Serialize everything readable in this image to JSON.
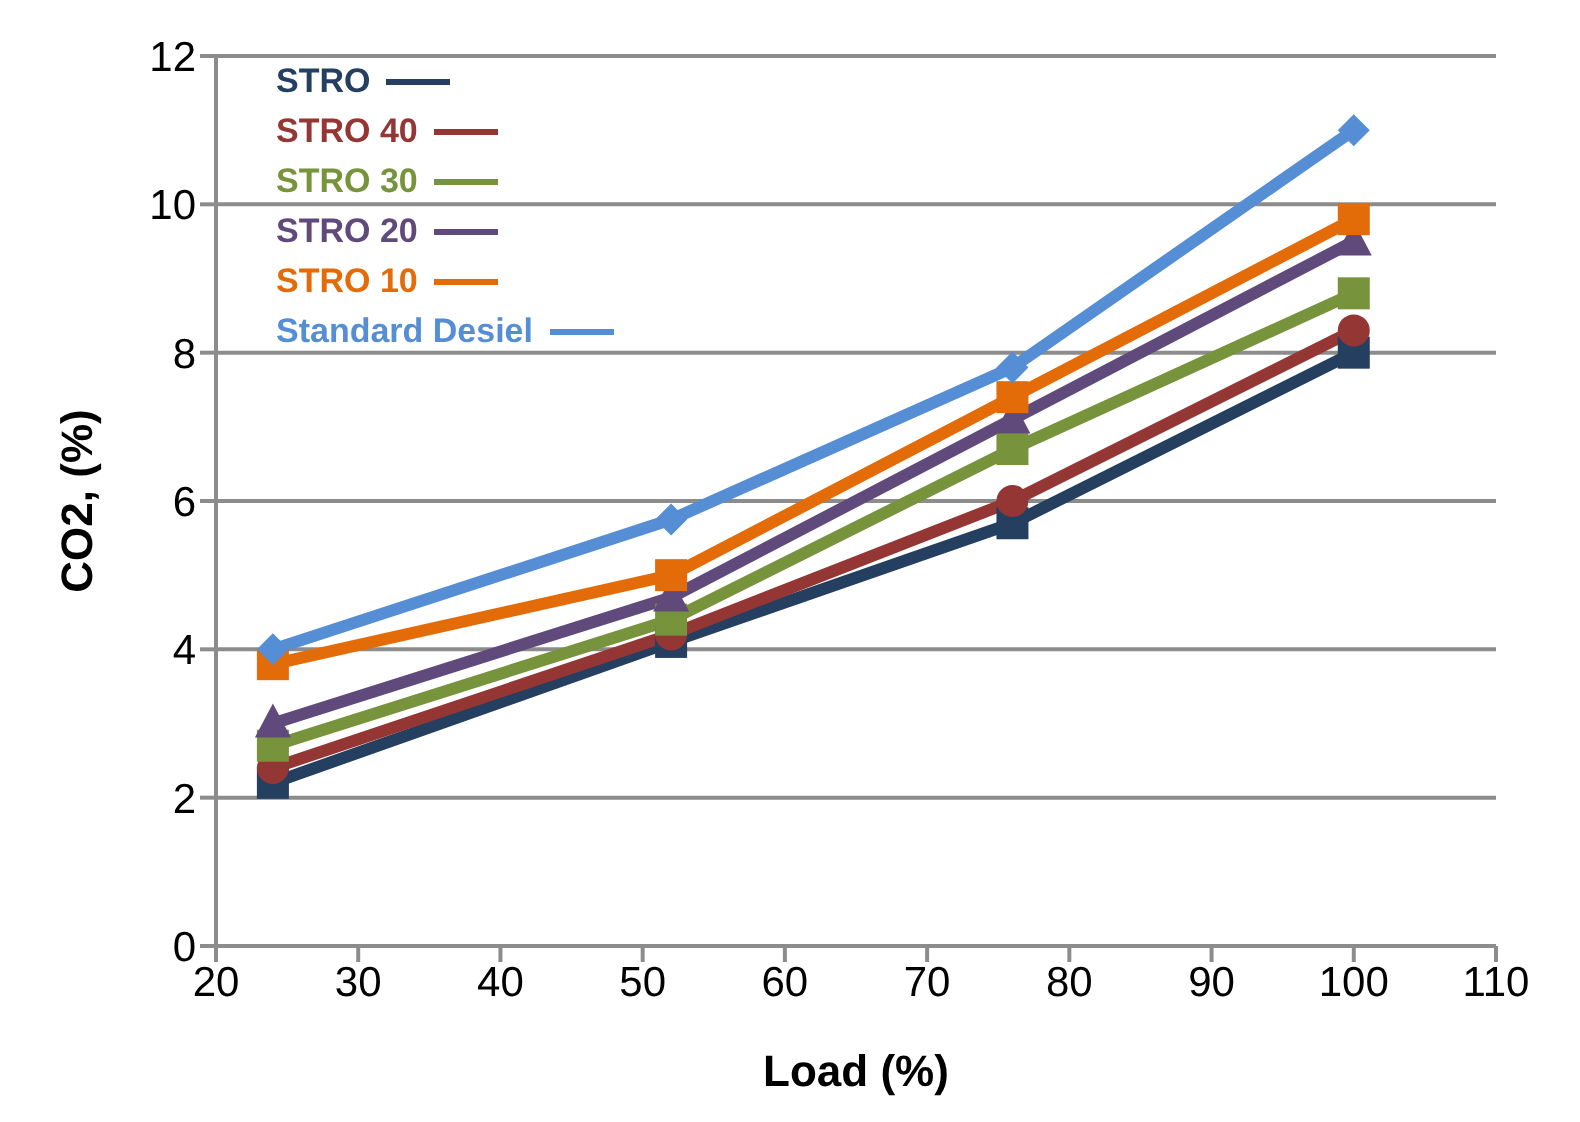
{
  "chart_data": {
    "type": "line",
    "xlabel": "Load (%)",
    "ylabel": "CO2, (%)",
    "x": [
      24,
      52,
      76,
      100
    ],
    "series": [
      {
        "name": "STRO",
        "color": "#243f60",
        "marker": "square",
        "values": [
          2.2,
          4.1,
          5.7,
          8.0
        ]
      },
      {
        "name": "STRO 40",
        "color": "#943634",
        "marker": "circle",
        "values": [
          2.4,
          4.2,
          6.0,
          8.3
        ]
      },
      {
        "name": "STRO 30",
        "color": "#77933c",
        "marker": "square",
        "values": [
          2.7,
          4.4,
          6.7,
          8.8
        ]
      },
      {
        "name": "STRO 20",
        "color": "#604a7b",
        "marker": "triangle",
        "values": [
          3.0,
          4.7,
          7.1,
          9.5
        ]
      },
      {
        "name": "STRO 10",
        "color": "#e36c09",
        "marker": "square",
        "values": [
          3.8,
          5.0,
          7.4,
          9.8
        ]
      },
      {
        "name": "Standard Desiel",
        "color": "#558ed5",
        "marker": "diamond",
        "values": [
          4.0,
          5.75,
          7.8,
          11.0
        ]
      }
    ],
    "xlim": [
      20,
      110
    ],
    "xticks": [
      20,
      30,
      40,
      50,
      60,
      70,
      80,
      90,
      100,
      110
    ],
    "ylim": [
      0,
      12
    ],
    "yticks": [
      0,
      2,
      4,
      6,
      8,
      10,
      12
    ],
    "grid": "y",
    "legend": "top left",
    "line_style": "solid"
  }
}
